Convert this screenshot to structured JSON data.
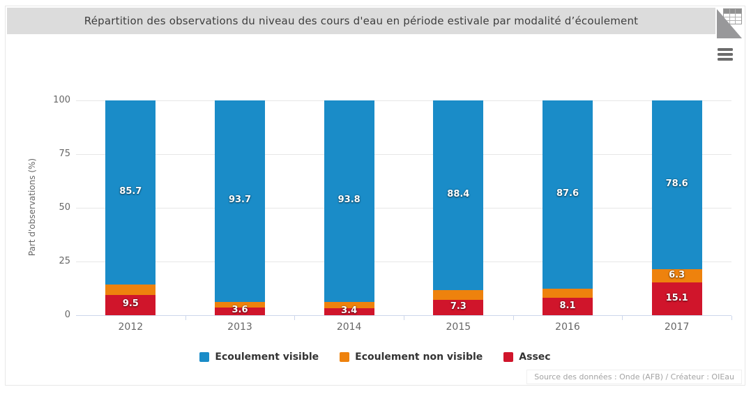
{
  "title_bar": {
    "title": "Répartition des observations du niveau des cours d'eau en période estivale par modalité d’écoulement"
  },
  "toolbar": {
    "data_table_icon": "table-corner-icon",
    "context_menu_icon": "hamburger-icon"
  },
  "chart_data": {
    "type": "bar",
    "stacked": true,
    "orientation": "vertical",
    "categories": [
      "2012",
      "2013",
      "2014",
      "2015",
      "2016",
      "2017"
    ],
    "series": [
      {
        "name": "Ecoulement visible",
        "color": "#1a8cc8",
        "values": [
          85.7,
          93.7,
          93.8,
          88.4,
          87.6,
          78.6
        ],
        "data_labels": [
          "85.7",
          "93.7",
          "93.8",
          "88.4",
          "87.6",
          "78.6"
        ]
      },
      {
        "name": "Ecoulement non visible",
        "color": "#ee820d",
        "values": [
          4.8,
          2.7,
          2.8,
          4.3,
          4.3,
          6.3
        ],
        "data_labels": [
          null,
          null,
          null,
          null,
          null,
          "6.3"
        ]
      },
      {
        "name": "Assec",
        "color": "#d0152b",
        "values": [
          9.5,
          3.6,
          3.4,
          7.3,
          8.1,
          15.1
        ],
        "data_labels": [
          "9.5",
          "3.6",
          "3.4",
          "7.3",
          "8.1",
          "15.1"
        ]
      }
    ],
    "stack_order_bottom_to_top": [
      "Assec",
      "Ecoulement non visible",
      "Ecoulement visible"
    ],
    "title": "Répartition des observations du niveau des cours d'eau en période estivale par modalité d’écoulement",
    "xlabel": "",
    "ylabel": "Part d'observations (%)",
    "ylim": [
      0,
      100
    ],
    "yticks": [
      0,
      25,
      50,
      75,
      100
    ],
    "grid": true,
    "legend_position": "bottom",
    "credits": "Source des données : Onde (AFB) / Créateur : OIEau",
    "colors": {
      "gridline": "#e6e6e6",
      "axis_line": "#ccd6eb",
      "tick_label": "#666666",
      "legend_text": "#333333",
      "data_label": "#ffffff",
      "title_bar_bg": "#dcdcdc",
      "title_text": "#3e3e3e"
    }
  }
}
